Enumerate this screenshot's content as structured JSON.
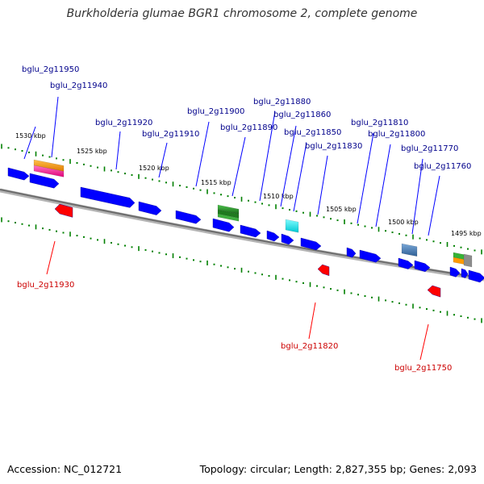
{
  "title": "Burkholderia glumae BGR1 chromosome 2, complete genome",
  "footer": {
    "accession_label": "Accession:",
    "accession": "NC_012721",
    "topology_label": "Topology:",
    "topology": "circular",
    "length_label": "Length:",
    "length": "2,827,355 bp",
    "genes_label": "Genes:",
    "genes": "2,093"
  },
  "colors": {
    "forward_gene": "#0000ff",
    "reverse_gene": "#ff0000",
    "forward_label": "#00008b",
    "reverse_label": "#cc0000",
    "backbone": "#808080",
    "tick": "#008000",
    "orange": "#ff9900",
    "pink": "#ff3399",
    "green": "#2e8b2e",
    "cyan": "#00e5ee",
    "steel": "#4a7fb5",
    "gray": "#808080"
  },
  "scale_labels": [
    "1530 kbp",
    "1525 kbp",
    "1520 kbp",
    "1515 kbp",
    "1510 kbp",
    "1505 kbp",
    "1500 kbp",
    "1495 kbp"
  ],
  "forward_labels": [
    "bglu_2g11950",
    "bglu_2g11940",
    "bglu_2g11920",
    "bglu_2g11910",
    "bglu_2g11900",
    "bglu_2g11890",
    "bglu_2g11880",
    "bglu_2g11860",
    "bglu_2g11850",
    "bglu_2g11830",
    "bglu_2g11810",
    "bglu_2g11800",
    "bglu_2g11770",
    "bglu_2g11760"
  ],
  "reverse_labels": [
    "bglu_2g11930",
    "bglu_2g11820",
    "bglu_2g11750"
  ]
}
